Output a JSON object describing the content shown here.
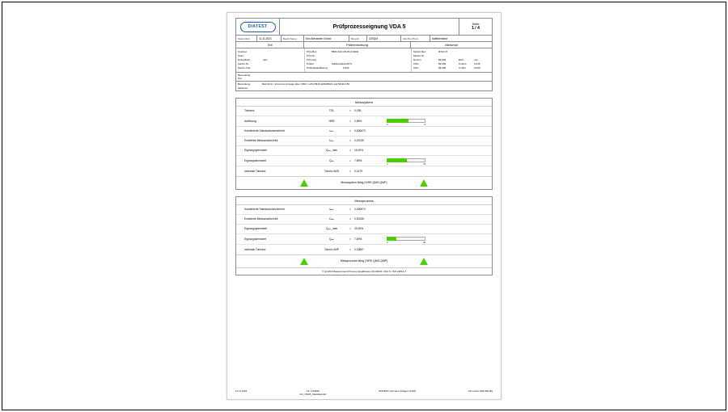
{
  "logo_text": "DIATEST",
  "title": "Prüfprozesseignung VDA 5",
  "page_label": "Seite",
  "page_num": "1 / 4",
  "meta": {
    "datum_l": "Datum/Zeit",
    "datum_v": "11.11.2021",
    "bearb_l": "Bearb.Name",
    "bearb_v": "Kim Alexander Grund",
    "bereich_l": "Bereich",
    "bereich_v": "QS/QM",
    "abt_l": "Abt./Kst./Prod.",
    "abt_v": "Kalibrierlabor"
  },
  "section": {
    "teil": "Teil",
    "pruef": "Prüfeinrichtung",
    "merk": "Merkmal"
  },
  "teil": {
    "bez_l": "Teilebez.",
    "bez_v": "",
    "nr_l": "Teilnr.",
    "nr_v": "",
    "doku_l": "Dokupflicht",
    "doku_v": "nein",
    "zeich_l": "Zeichn.Nr.",
    "zeich_v": "",
    "zand_l": "Zeichn.Änd.",
    "zand_v": ""
  },
  "pruef": {
    "bez_l": "Prfm.Bez.",
    "bez_v": "BMD-S10-CR-83,0-MDR",
    "nr_l": "Prfm.Nr.",
    "nr_v": "",
    "grp_l": "Prfm.Grp.",
    "grp_v": "",
    "ort_l": "Prüfort",
    "ort_v": "Kalibrierlabor/20°C",
    "aufl_l": "Prüfmittelauflösung",
    "aufl_v": "0,001"
  },
  "merk": {
    "bez_l": "Merkm.Bez.",
    "bez_v": "Ø 83 H7",
    "nr_l": "Merkm.Nr.",
    "nr_v": "",
    "nom_l": "Nennm.",
    "nom_v": "83,000",
    "einh_l": "Einh.",
    "einh_v": "mm",
    "osg_l": "OSG",
    "osg_v": "83,035",
    "oa_l": "O.Abm.",
    "oa_v": "0,035",
    "usg_l": "USG",
    "usg_v": "83,000",
    "ua_l": "U.Abm.",
    "ua_v": "0,000"
  },
  "rem": {
    "bem_l": "Bemerkung",
    "teil_l": "Teil",
    "teil_v": "",
    "bem2_l": "Bemerkung",
    "bem2_v": "Bericht Nr.: 21mmxxx Anzeige über: MDU 1-2N-PM-Nr12/2009/21 und MH10-150",
    "merk_l": "Merkmal",
    "merk_v": ""
  },
  "panel1": {
    "title": "Messsystem",
    "rows": [
      {
        "label": "Toleranz",
        "sym": "TOL",
        "val": "0,035",
        "bar": null
      },
      {
        "label": "Auflösung",
        "sym": "%RE",
        "val": "2,86%",
        "bar": {
          "fill": 27,
          "min": "0",
          "max": "5"
        }
      },
      {
        "label": "Kombinierte Standardunsicherheit",
        "sym": "uₘₛ",
        "val": "0,000673",
        "bar": null
      },
      {
        "label": "Erweiterte Messunsicherheit",
        "sym": "Uₘₛ",
        "val": "0,00135",
        "bar": null
      },
      {
        "label": "Eignungsgrenzwert",
        "sym": "Qₘₛ_max",
        "val": "15,00%",
        "bar": null
      },
      {
        "label": "Eignungskennwert",
        "sym": "Qₘₛ",
        "val": "7,69%",
        "bar": {
          "fill": 25,
          "min": "0",
          "max": "15"
        }
      },
      {
        "label": "minimale Toleranz",
        "sym": "Tolmin-UMS",
        "val": "0,0179",
        "bar": null
      }
    ],
    "status": "Messsystem fähig (%RE,QMS,QMP)"
  },
  "panel2": {
    "title": "Messprozess",
    "rows": [
      {
        "label": "Kombinierte Standardunsicherheit",
        "sym": "uₘₚ",
        "val": "0,000673",
        "bar": null
      },
      {
        "label": "Erweiterte Messunsicherheit",
        "sym": "Uₘₚ",
        "val": "0,00135",
        "bar": null
      },
      {
        "label": "Eignungsgrenzwert",
        "sym": "Qₘₚ_max",
        "val": "30,00%",
        "bar": null
      },
      {
        "label": "Eignungskennwert",
        "sym": "Qₘₚ",
        "val": "7,69%",
        "bar": {
          "fill": 12,
          "min": "0",
          "max": "30"
        }
      },
      {
        "label": "minimale Toleranz",
        "sym": "Tolmin-UMP",
        "val": "0,00897",
        "bar": null
      }
    ],
    "status": "Messprozess fähig (%RE,QMS,QMP)",
    "footnote": "© Q-DAS Measurement Process Qualification (01/2020): VDA 5 / ISO 22514-7"
  },
  "footer": {
    "left": "11.11.2021",
    "mid_top": "13 / 219459",
    "mid_bot": "GC_VDA5_Standard.def",
    "center": "DIATEST Hermann Költgen GmbH",
    "right": "21mmxxx-VDA DE.dfq"
  },
  "colors": {
    "accent": "#4ad000",
    "border": "#888",
    "logo": "#1860a8"
  }
}
